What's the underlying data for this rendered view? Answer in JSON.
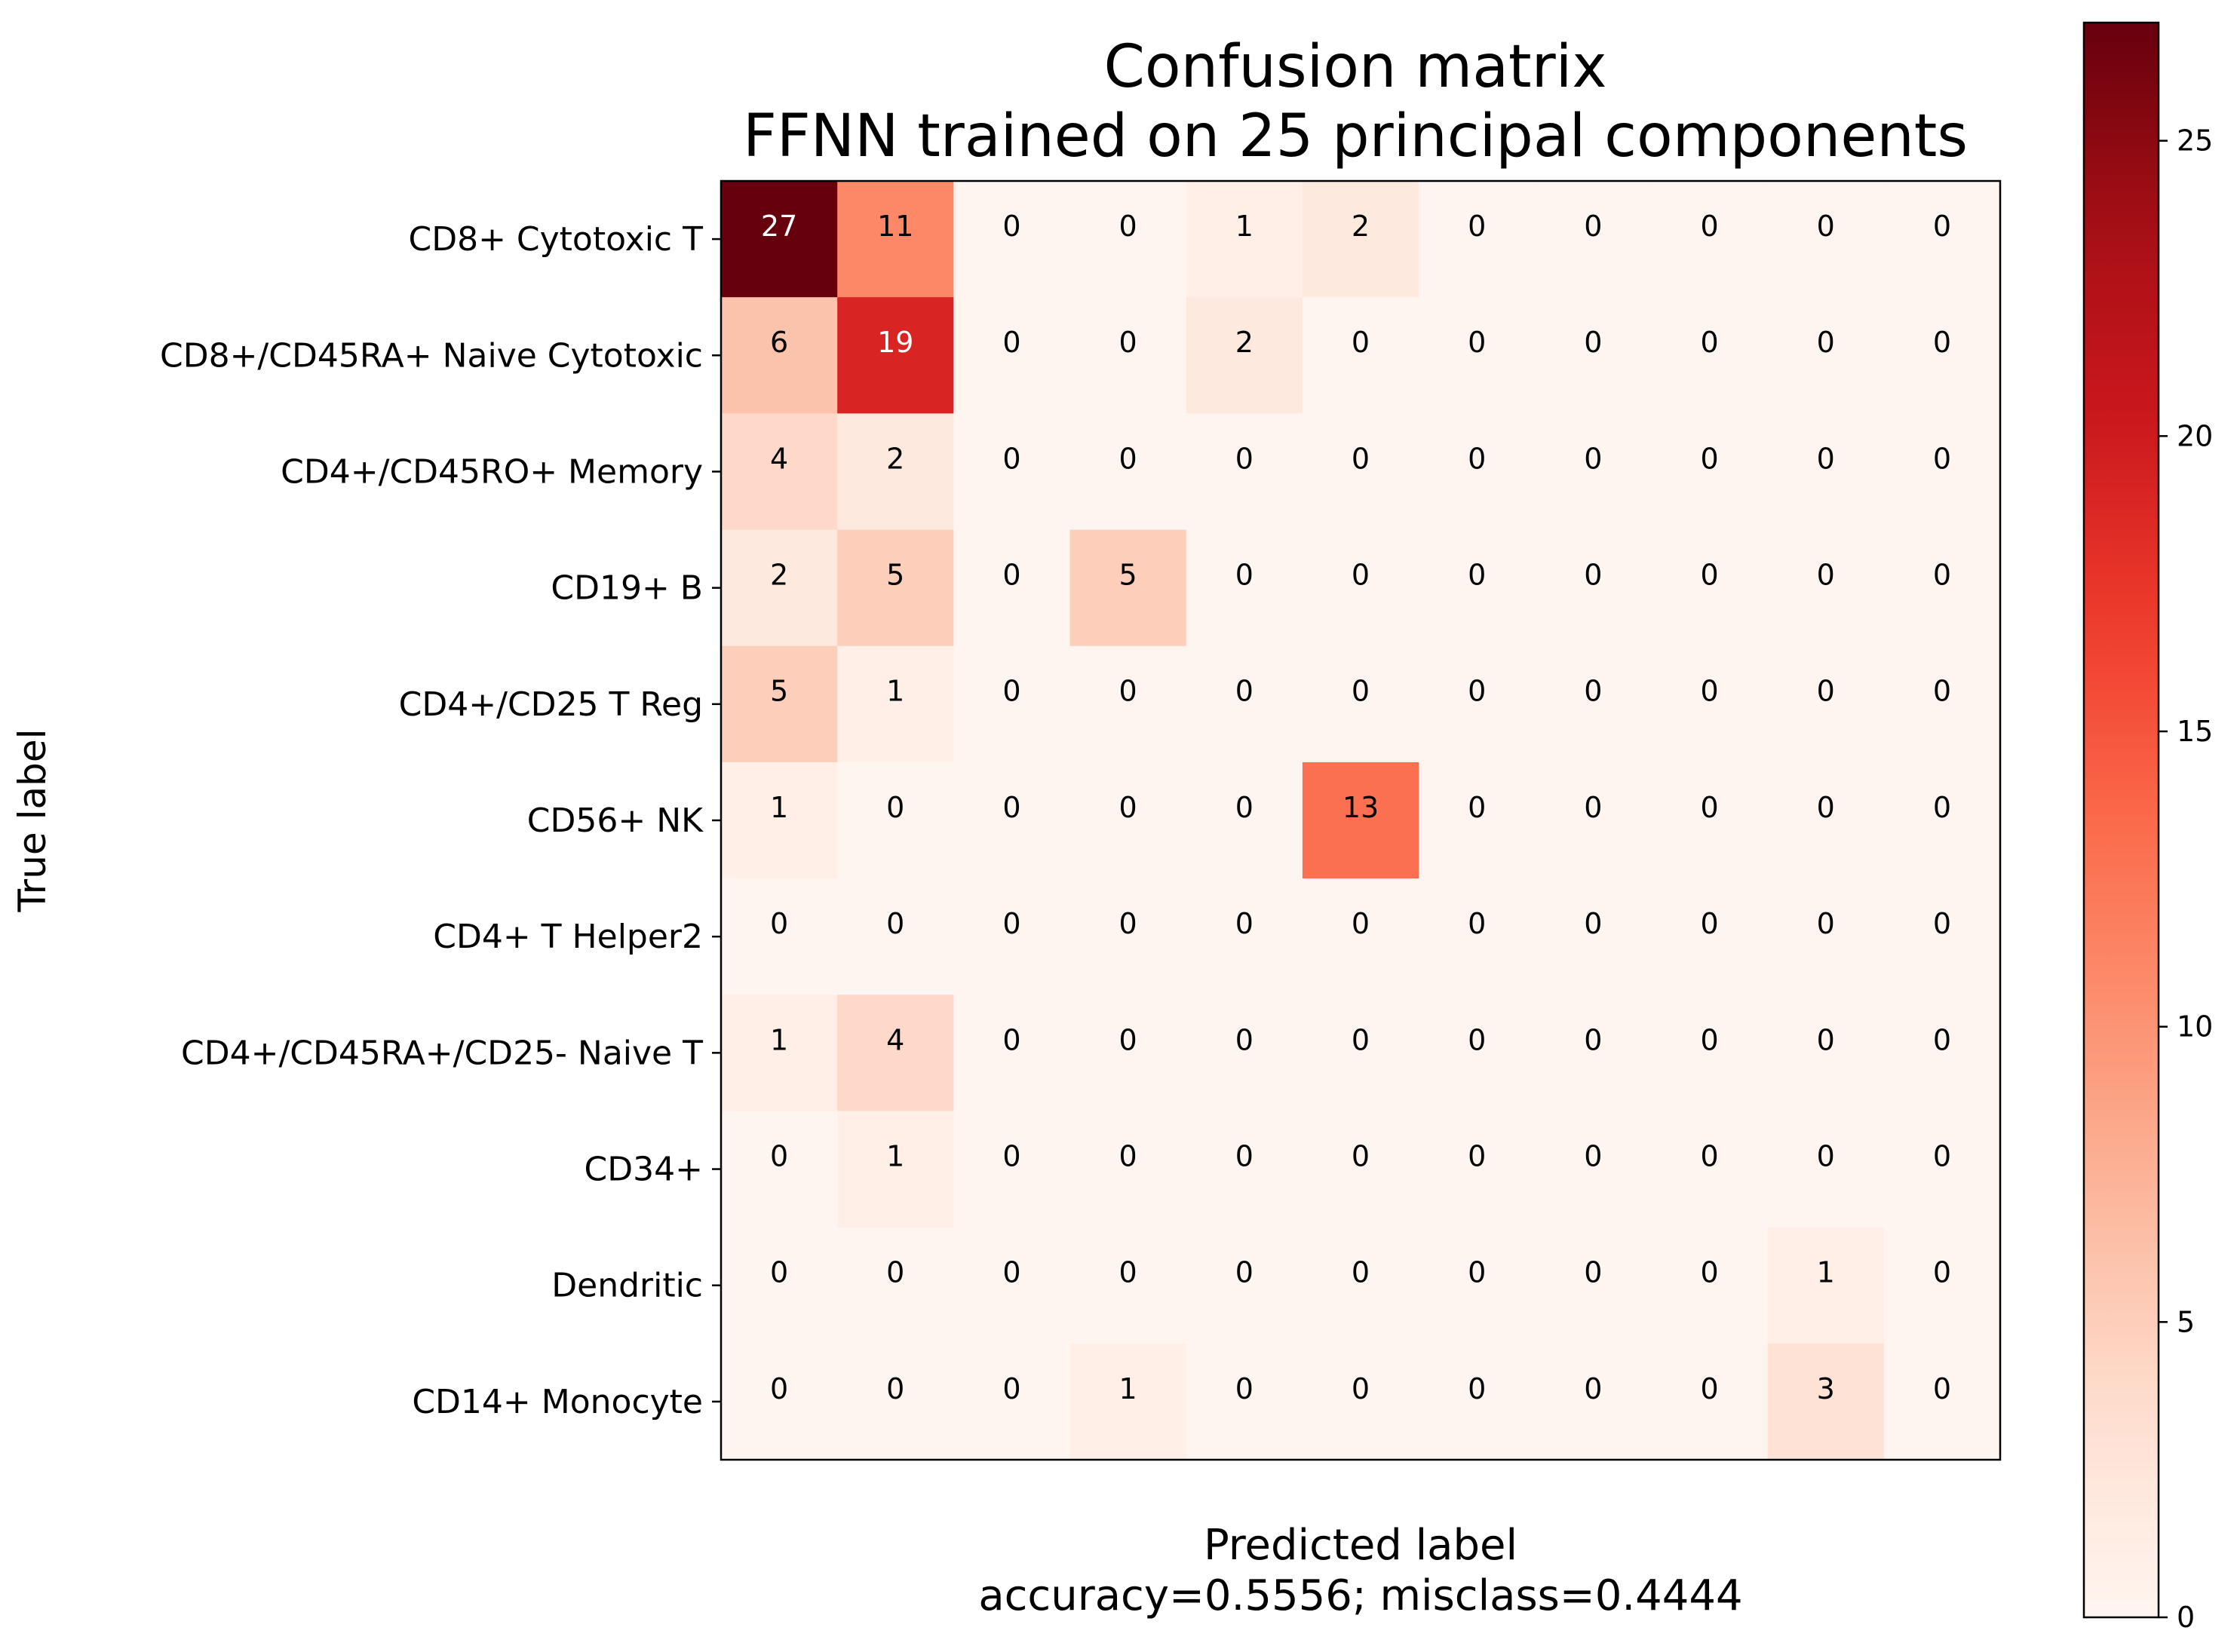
{
  "chart_data": {
    "type": "heatmap",
    "title": "Confusion matrix\nFFNN trained on 25 principal components",
    "xlabel": "Predicted label\naccuracy=0.5556; misclass=0.4444",
    "ylabel": "True label",
    "row_labels": [
      "CD8+ Cytotoxic T",
      "CD8+/CD45RA+ Naive Cytotoxic",
      "CD4+/CD45RO+ Memory",
      "CD19+ B",
      "CD4+/CD25 T Reg",
      "CD56+ NK",
      "CD4+ T Helper2",
      "CD4+/CD45RA+/CD25- Naive T",
      "CD34+",
      "Dendritic",
      "CD14+ Monocyte"
    ],
    "matrix": [
      [
        27,
        11,
        0,
        0,
        1,
        2,
        0,
        0,
        0,
        0,
        0
      ],
      [
        6,
        19,
        0,
        0,
        2,
        0,
        0,
        0,
        0,
        0,
        0
      ],
      [
        4,
        2,
        0,
        0,
        0,
        0,
        0,
        0,
        0,
        0,
        0
      ],
      [
        2,
        5,
        0,
        5,
        0,
        0,
        0,
        0,
        0,
        0,
        0
      ],
      [
        5,
        1,
        0,
        0,
        0,
        0,
        0,
        0,
        0,
        0,
        0
      ],
      [
        1,
        0,
        0,
        0,
        0,
        13,
        0,
        0,
        0,
        0,
        0
      ],
      [
        0,
        0,
        0,
        0,
        0,
        0,
        0,
        0,
        0,
        0,
        0
      ],
      [
        1,
        4,
        0,
        0,
        0,
        0,
        0,
        0,
        0,
        0,
        0
      ],
      [
        0,
        1,
        0,
        0,
        0,
        0,
        0,
        0,
        0,
        0,
        0
      ],
      [
        0,
        0,
        0,
        0,
        0,
        0,
        0,
        0,
        0,
        1,
        0
      ],
      [
        0,
        0,
        0,
        1,
        0,
        0,
        0,
        0,
        0,
        3,
        0
      ]
    ],
    "colormap": "Reds",
    "vmin": 0,
    "vmax": 27,
    "colorbar_ticks": [
      0,
      5,
      10,
      15,
      20,
      25
    ],
    "grid": false
  }
}
